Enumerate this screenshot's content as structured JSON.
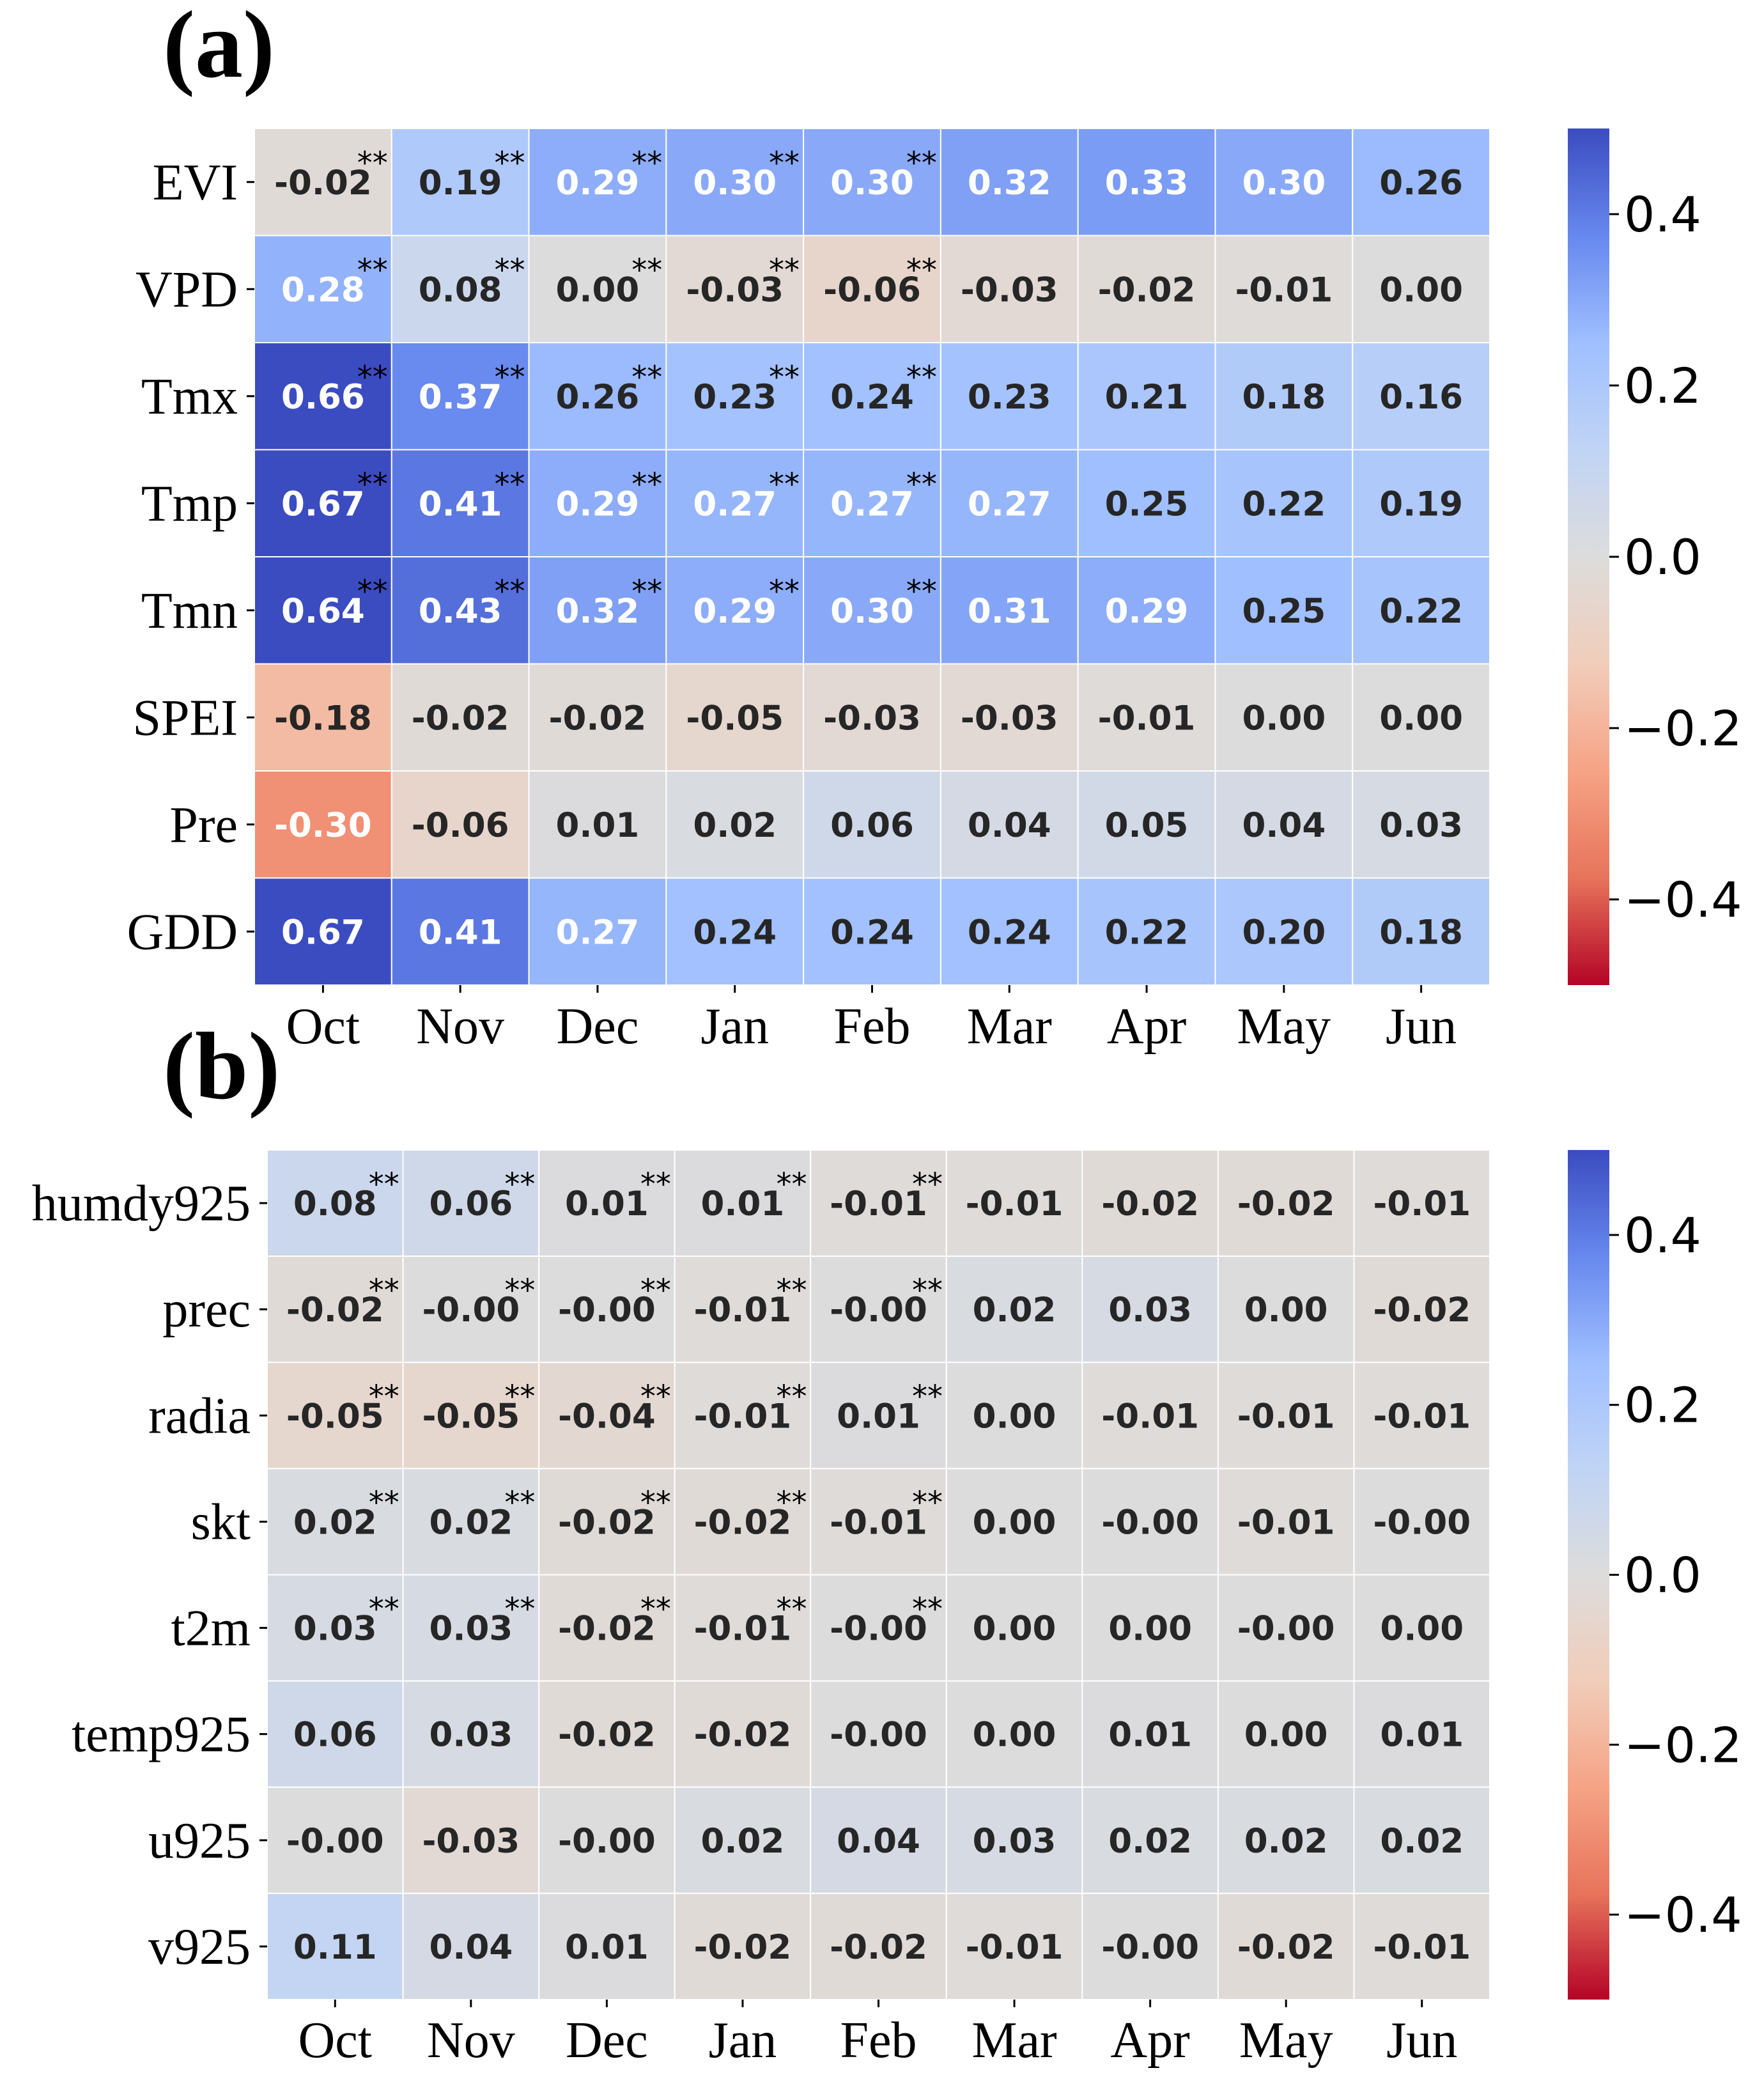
{
  "chart_data": [
    {
      "type": "heatmap",
      "panel_label": "(a)",
      "rows": [
        "EVI",
        "VPD",
        "Tmx",
        "Tmp",
        "Tmn",
        "SPEI",
        "Pre",
        "GDD"
      ],
      "columns": [
        "Oct",
        "Nov",
        "Dec",
        "Jan",
        "Feb",
        "Mar",
        "Apr",
        "May",
        "Jun"
      ],
      "display": [
        [
          "-0.02",
          "0.19",
          "0.29",
          "0.30",
          "0.30",
          "0.32",
          "0.33",
          "0.30",
          "0.26"
        ],
        [
          "0.28",
          "0.08",
          "0.00",
          "-0.03",
          "-0.06",
          "-0.03",
          "-0.02",
          "-0.01",
          "0.00"
        ],
        [
          "0.66",
          "0.37",
          "0.26",
          "0.23",
          "0.24",
          "0.23",
          "0.21",
          "0.18",
          "0.16"
        ],
        [
          "0.67",
          "0.41",
          "0.29",
          "0.27",
          "0.27",
          "0.27",
          "0.25",
          "0.22",
          "0.19"
        ],
        [
          "0.64",
          "0.43",
          "0.32",
          "0.29",
          "0.30",
          "0.31",
          "0.29",
          "0.25",
          "0.22"
        ],
        [
          "-0.18",
          "-0.02",
          "-0.02",
          "-0.05",
          "-0.03",
          "-0.03",
          "-0.01",
          "0.00",
          "0.00"
        ],
        [
          "-0.30",
          "-0.06",
          "0.01",
          "0.02",
          "0.06",
          "0.04",
          "0.05",
          "0.04",
          "0.03"
        ],
        [
          "0.67",
          "0.41",
          "0.27",
          "0.24",
          "0.24",
          "0.24",
          "0.22",
          "0.20",
          "0.18"
        ]
      ],
      "significance": [
        [
          "**",
          "**",
          "**",
          "**",
          "**",
          "",
          "",
          "",
          ""
        ],
        [
          "**",
          "**",
          "**",
          "**",
          "**",
          "",
          "",
          "",
          ""
        ],
        [
          "**",
          "**",
          "**",
          "**",
          "**",
          "",
          "",
          "",
          ""
        ],
        [
          "**",
          "**",
          "**",
          "**",
          "**",
          "",
          "",
          "",
          ""
        ],
        [
          "**",
          "**",
          "**",
          "**",
          "**",
          "",
          "",
          "",
          ""
        ],
        [
          "",
          "",
          "",
          "",
          "",
          "",
          "",
          "",
          ""
        ],
        [
          "",
          "",
          "",
          "",
          "",
          "",
          "",
          "",
          ""
        ],
        [
          "",
          "",
          "",
          "",
          "",
          "",
          "",
          "",
          ""
        ]
      ],
      "colorbar": {
        "cmap": "coolwarm_r",
        "vmin": -0.5,
        "vmax": 0.5,
        "ticks": [
          "0.4",
          "0.2",
          "0.0",
          "−0.2",
          "−0.4"
        ]
      }
    },
    {
      "type": "heatmap",
      "panel_label": "(b)",
      "rows": [
        "humdy925",
        "prec",
        "radia",
        "skt",
        "t2m",
        "temp925",
        "u925",
        "v925"
      ],
      "columns": [
        "Oct",
        "Nov",
        "Dec",
        "Jan",
        "Feb",
        "Mar",
        "Apr",
        "May",
        "Jun"
      ],
      "display": [
        [
          "0.08",
          "0.06",
          "0.01",
          "0.01",
          "-0.01",
          "-0.01",
          "-0.02",
          "-0.02",
          "-0.01"
        ],
        [
          "-0.02",
          "-0.00",
          "-0.00",
          "-0.01",
          "-0.00",
          "0.02",
          "0.03",
          "0.00",
          "-0.02"
        ],
        [
          "-0.05",
          "-0.05",
          "-0.04",
          "-0.01",
          "0.01",
          "0.00",
          "-0.01",
          "-0.01",
          "-0.01"
        ],
        [
          "0.02",
          "0.02",
          "-0.02",
          "-0.02",
          "-0.01",
          "0.00",
          "-0.00",
          "-0.01",
          "-0.00"
        ],
        [
          "0.03",
          "0.03",
          "-0.02",
          "-0.01",
          "-0.00",
          "0.00",
          "0.00",
          "-0.00",
          "0.00"
        ],
        [
          "0.06",
          "0.03",
          "-0.02",
          "-0.02",
          "-0.00",
          "0.00",
          "0.01",
          "0.00",
          "0.01"
        ],
        [
          "-0.00",
          "-0.03",
          "-0.00",
          "0.02",
          "0.04",
          "0.03",
          "0.02",
          "0.02",
          "0.02"
        ],
        [
          "0.11",
          "0.04",
          "0.01",
          "-0.02",
          "-0.02",
          "-0.01",
          "-0.00",
          "-0.02",
          "-0.01"
        ]
      ],
      "significance": [
        [
          "**",
          "**",
          "**",
          "**",
          "**",
          "",
          "",
          "",
          ""
        ],
        [
          "**",
          "**",
          "**",
          "**",
          "**",
          "",
          "",
          "",
          ""
        ],
        [
          "**",
          "**",
          "**",
          "**",
          "**",
          "",
          "",
          "",
          ""
        ],
        [
          "**",
          "**",
          "**",
          "**",
          "**",
          "",
          "",
          "",
          ""
        ],
        [
          "**",
          "**",
          "**",
          "**",
          "**",
          "",
          "",
          "",
          ""
        ],
        [
          "",
          "",
          "",
          "",
          "",
          "",
          "",
          "",
          ""
        ],
        [
          "",
          "",
          "",
          "",
          "",
          "",
          "",
          "",
          ""
        ],
        [
          "",
          "",
          "",
          "",
          "",
          "",
          "",
          "",
          ""
        ]
      ],
      "colorbar": {
        "cmap": "coolwarm_r",
        "vmin": -0.5,
        "vmax": 0.5,
        "ticks": [
          "0.4",
          "0.2",
          "0.0",
          "−0.2",
          "−0.4"
        ]
      }
    }
  ]
}
